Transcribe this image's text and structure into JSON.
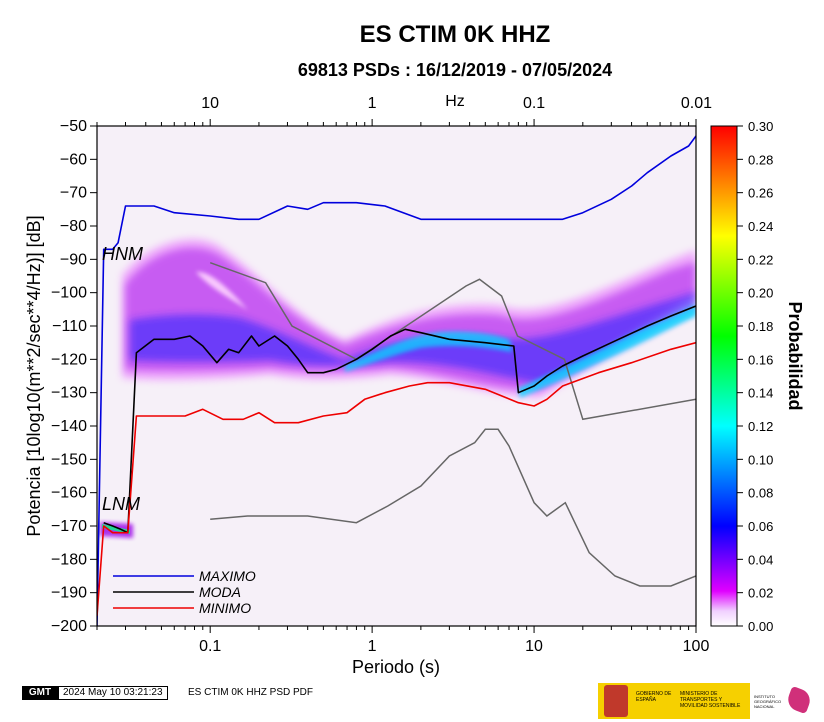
{
  "chart_data": {
    "type": "psd_probability",
    "title": "ES CTIM 0K HHZ",
    "subtitle": "69813 PSDs : 16/12/2019 - 07/05/2024",
    "xlabel": "Periodo (s)",
    "ylabel": "Potencia [10log10(m**2/sec**4/Hz)] [dB]",
    "x_scale": "log",
    "xlim": [
      0.02,
      100
    ],
    "ylim": [
      -200,
      -50
    ],
    "x_ticks": [
      0.1,
      1,
      10,
      100
    ],
    "x_tick_labels": [
      "0.1",
      "1",
      "10",
      "100"
    ],
    "y_ticks": [
      -200,
      -190,
      -180,
      -170,
      -160,
      -150,
      -140,
      -130,
      -120,
      -110,
      -100,
      -90,
      -80,
      -70,
      -60,
      -50
    ],
    "y_tick_labels": [
      "−200",
      "−190",
      "−180",
      "−170",
      "−160",
      "−150",
      "−140",
      "−130",
      "−120",
      "−110",
      "−100",
      "−90",
      "−80",
      "−70",
      "−60",
      "−50"
    ],
    "top_axis": {
      "label": "Hz",
      "ticks": [
        10,
        1,
        0.1,
        0.01
      ],
      "tick_labels": [
        "10",
        "1",
        "0.1",
        "0.01"
      ]
    },
    "colorbar": {
      "label": "Probabilidad",
      "range": [
        0,
        0.3
      ],
      "ticks": [
        "0.00",
        "0.02",
        "0.04",
        "0.06",
        "0.08",
        "0.10",
        "0.12",
        "0.14",
        "0.16",
        "0.18",
        "0.20",
        "0.22",
        "0.24",
        "0.26",
        "0.28",
        "0.30"
      ],
      "colors": [
        "#ffffff",
        "#e000ff",
        "#0000ff",
        "#00ffff",
        "#00ff00",
        "#ffff00",
        "#ff0000"
      ]
    },
    "series": [
      {
        "name": "MAXIMO",
        "color": "#0000dd",
        "points": [
          [
            0.02,
            -200
          ],
          [
            0.022,
            -87
          ],
          [
            0.025,
            -87
          ],
          [
            0.027,
            -85
          ],
          [
            0.03,
            -74
          ],
          [
            0.045,
            -74
          ],
          [
            0.06,
            -76
          ],
          [
            0.1,
            -77
          ],
          [
            0.15,
            -78
          ],
          [
            0.2,
            -78
          ],
          [
            0.3,
            -74
          ],
          [
            0.4,
            -75
          ],
          [
            0.5,
            -73
          ],
          [
            0.8,
            -73
          ],
          [
            1.2,
            -74
          ],
          [
            2,
            -78
          ],
          [
            5,
            -78
          ],
          [
            10,
            -78
          ],
          [
            15,
            -78
          ],
          [
            20,
            -76
          ],
          [
            30,
            -72
          ],
          [
            40,
            -68
          ],
          [
            50,
            -64
          ],
          [
            70,
            -59
          ],
          [
            90,
            -56
          ],
          [
            100,
            -53
          ]
        ]
      },
      {
        "name": "MODA",
        "color": "#000000",
        "points": [
          [
            0.022,
            -169
          ],
          [
            0.025,
            -170
          ],
          [
            0.028,
            -171
          ],
          [
            0.031,
            -172
          ],
          [
            0.035,
            -118
          ],
          [
            0.045,
            -114
          ],
          [
            0.06,
            -114
          ],
          [
            0.075,
            -113
          ],
          [
            0.09,
            -116
          ],
          [
            0.11,
            -121
          ],
          [
            0.13,
            -117
          ],
          [
            0.15,
            -118
          ],
          [
            0.18,
            -113
          ],
          [
            0.2,
            -116
          ],
          [
            0.25,
            -113
          ],
          [
            0.3,
            -116
          ],
          [
            0.35,
            -120
          ],
          [
            0.4,
            -124
          ],
          [
            0.5,
            -124
          ],
          [
            0.6,
            -123
          ],
          [
            0.8,
            -120
          ],
          [
            1,
            -117
          ],
          [
            1.3,
            -113
          ],
          [
            1.6,
            -111
          ],
          [
            2,
            -112
          ],
          [
            3,
            -114
          ],
          [
            5,
            -115
          ],
          [
            7.5,
            -116
          ],
          [
            8,
            -130
          ],
          [
            10,
            -128
          ],
          [
            12,
            -125
          ],
          [
            15,
            -122
          ],
          [
            20,
            -119
          ],
          [
            30,
            -115
          ],
          [
            50,
            -110
          ],
          [
            70,
            -107
          ],
          [
            100,
            -104
          ]
        ]
      },
      {
        "name": "MINIMO",
        "color": "#ee0000",
        "points": [
          [
            0.02,
            -197
          ],
          [
            0.022,
            -170
          ],
          [
            0.025,
            -172
          ],
          [
            0.028,
            -172
          ],
          [
            0.031,
            -172
          ],
          [
            0.035,
            -137
          ],
          [
            0.07,
            -137
          ],
          [
            0.09,
            -135
          ],
          [
            0.12,
            -138
          ],
          [
            0.16,
            -138
          ],
          [
            0.2,
            -136
          ],
          [
            0.25,
            -139
          ],
          [
            0.35,
            -139
          ],
          [
            0.5,
            -137
          ],
          [
            0.7,
            -136
          ],
          [
            0.9,
            -132
          ],
          [
            1.2,
            -130
          ],
          [
            1.7,
            -128
          ],
          [
            2.2,
            -127
          ],
          [
            3,
            -127
          ],
          [
            5,
            -129
          ],
          [
            8,
            -133
          ],
          [
            10,
            -134
          ],
          [
            12,
            -132
          ],
          [
            15,
            -128
          ],
          [
            25,
            -124
          ],
          [
            40,
            -121
          ],
          [
            70,
            -117
          ],
          [
            100,
            -115
          ]
        ]
      }
    ],
    "reference_models": [
      {
        "name": "HNM",
        "color": "#666666",
        "points": [
          [
            0.1,
            -91
          ],
          [
            0.22,
            -97
          ],
          [
            0.32,
            -110
          ],
          [
            0.8,
            -120
          ],
          [
            3.8,
            -98
          ],
          [
            4.6,
            -96
          ],
          [
            6.3,
            -101
          ],
          [
            7.9,
            -113
          ],
          [
            15.4,
            -120
          ],
          [
            20,
            -138
          ],
          [
            100,
            -132
          ]
        ]
      },
      {
        "name": "LNM",
        "color": "#666666",
        "points": [
          [
            0.1,
            -168
          ],
          [
            0.17,
            -167
          ],
          [
            0.4,
            -167
          ],
          [
            0.8,
            -169
          ],
          [
            1.25,
            -164
          ],
          [
            2,
            -158
          ],
          [
            3,
            -149
          ],
          [
            4.3,
            -145
          ],
          [
            5,
            -141
          ],
          [
            6,
            -141
          ],
          [
            7,
            -146
          ],
          [
            10,
            -163
          ],
          [
            12,
            -167
          ],
          [
            15.6,
            -163
          ],
          [
            21.9,
            -178
          ],
          [
            31.6,
            -185
          ],
          [
            45,
            -188
          ],
          [
            70,
            -188
          ],
          [
            100,
            -185
          ]
        ]
      }
    ],
    "legend": {
      "position": "bottom-left",
      "entries": [
        "MAXIMO",
        "MODA",
        "MINIMO"
      ]
    }
  },
  "footer": {
    "gmt_logo": "GMT",
    "timestamp": "2024 May 10 03:21:23",
    "filename": "ES CTIM 0K HHZ PSD PDF",
    "logo_text_1": "GOBIERNO DE ESPAÑA",
    "logo_text_2": "MINISTERIO DE TRANSPORTES Y MOVILIDAD SOSTENIBLE",
    "logo_text_3": "INSTITUTO GEOGRÁFICO NACIONAL"
  }
}
